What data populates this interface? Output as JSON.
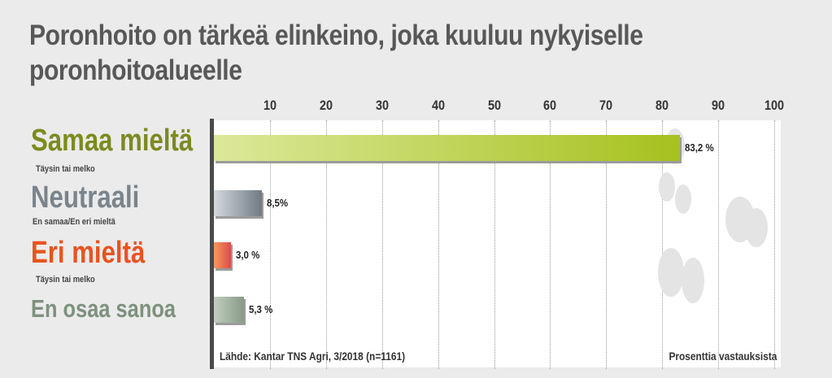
{
  "title_line1": "Poronhoito on tärkeä elinkeino, joka kuuluu nykyiselle",
  "title_line2": "poronhoitoalueelle",
  "source": "Lähde: Kantar TNS Agri, 3/2018 (n=1161)",
  "unit_note": "Prosenttia vastauksista",
  "chart_data": {
    "type": "bar",
    "orientation": "horizontal",
    "xlim": [
      0,
      100
    ],
    "ticks": [
      "10",
      "20",
      "30",
      "40",
      "50",
      "60",
      "70",
      "80",
      "90",
      "100"
    ],
    "grid": true,
    "categories": [
      {
        "label": "Samaa mieltä",
        "sublabel": "Täysin tai melko",
        "value": 83.2,
        "value_label": "83,2 %",
        "color": "#b5cc3a",
        "gradient_from": "#dce89a",
        "gradient_to": "#a6c11f"
      },
      {
        "label": "Neutraali",
        "sublabel": "En samaa/En eri mieltä",
        "value": 8.5,
        "value_label": "8,5%",
        "color": "#7f8a93",
        "gradient_from": "#d4d9de",
        "gradient_to": "#6f7a84"
      },
      {
        "label": "Eri mieltä",
        "sublabel": "Täysin tai melko",
        "value": 3.0,
        "value_label": "3,0 %",
        "color": "#e85b2a",
        "gradient_from": "#f59a5a",
        "gradient_to": "#e04a4a"
      },
      {
        "label": "En osaa sanoa",
        "sublabel": "",
        "value": 5.3,
        "value_label": "5,3 %",
        "color": "#8c9e8b",
        "gradient_from": "#c2cec1",
        "gradient_to": "#889a87"
      }
    ]
  }
}
